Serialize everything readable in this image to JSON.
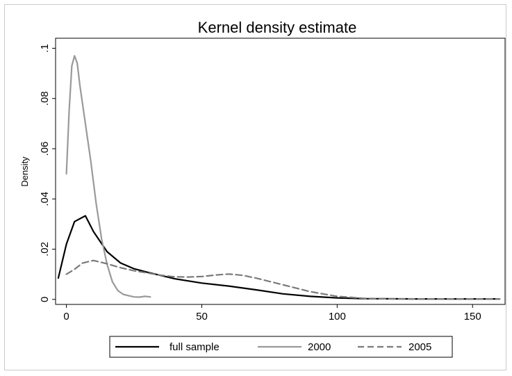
{
  "chart_data": {
    "type": "line",
    "title": "Kernel density estimate",
    "xlabel": "",
    "ylabel": "Density",
    "xlim": [
      -4,
      162
    ],
    "ylim": [
      -0.002,
      0.104
    ],
    "xticks": [
      0,
      50,
      100,
      150
    ],
    "xtick_labels": [
      "0",
      "50",
      "100",
      "150"
    ],
    "yticks": [
      0,
      0.02,
      0.04,
      0.06,
      0.08,
      0.1
    ],
    "ytick_labels": [
      "0",
      ".02",
      ".04",
      ".06",
      ".08",
      ".1"
    ],
    "grid": false,
    "legend_position": "bottom",
    "series": [
      {
        "name": "full sample",
        "color": "#000000",
        "dash": "solid",
        "x": [
          -3,
          0,
          3,
          7,
          10,
          15,
          20,
          25,
          30,
          35,
          40,
          50,
          60,
          70,
          80,
          90,
          100,
          110,
          130,
          160
        ],
        "y": [
          0.0085,
          0.022,
          0.031,
          0.0333,
          0.027,
          0.019,
          0.0145,
          0.0122,
          0.0108,
          0.0095,
          0.0082,
          0.0065,
          0.0053,
          0.0038,
          0.0022,
          0.0012,
          0.0006,
          0.0003,
          0.0002,
          0.0002
        ]
      },
      {
        "name": "2000",
        "color": "#999999",
        "dash": "solid",
        "x": [
          0,
          1,
          2,
          3,
          4,
          5,
          7,
          9,
          11,
          13,
          15,
          17,
          19,
          21,
          23,
          25,
          27,
          29,
          31
        ],
        "y": [
          0.05,
          0.075,
          0.093,
          0.097,
          0.094,
          0.085,
          0.07,
          0.055,
          0.038,
          0.024,
          0.014,
          0.007,
          0.0035,
          0.002,
          0.0015,
          0.001,
          0.0009,
          0.0012,
          0.001
        ]
      },
      {
        "name": "2005",
        "color": "#7a7a7a",
        "dash": "dashed",
        "x": [
          0,
          3,
          6,
          10,
          15,
          20,
          25,
          30,
          35,
          40,
          45,
          50,
          55,
          60,
          65,
          70,
          80,
          90,
          100,
          110,
          120,
          160
        ],
        "y": [
          0.01,
          0.012,
          0.0145,
          0.0155,
          0.0142,
          0.0126,
          0.0114,
          0.0105,
          0.0096,
          0.009,
          0.0089,
          0.0091,
          0.0097,
          0.0101,
          0.0096,
          0.0085,
          0.0058,
          0.0031,
          0.0012,
          0.0004,
          0.0002,
          0.0002
        ]
      }
    ]
  }
}
